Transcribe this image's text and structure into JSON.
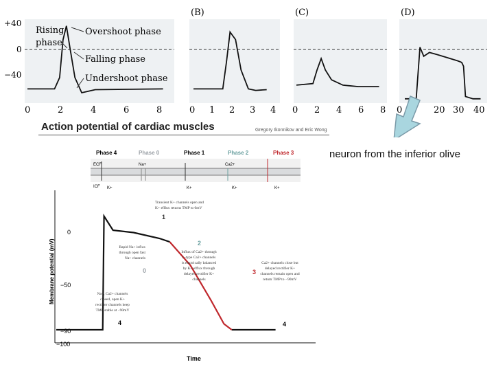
{
  "top_panels": [
    {
      "label": "",
      "y_ticks": [
        "+40",
        "0",
        "−40"
      ],
      "x_ticks": [
        "0",
        "2",
        "4",
        "6",
        "8"
      ],
      "annotations": [
        "Rising",
        "phase",
        "Overshoot phase",
        "Falling phase",
        "Undershoot phase"
      ]
    },
    {
      "label": "(B)",
      "x_ticks": [
        "0",
        "1",
        "2",
        "3",
        "4"
      ]
    },
    {
      "label": "(C)",
      "x_ticks": [
        "0",
        "2",
        "4",
        "6",
        "8"
      ]
    },
    {
      "label": "(D)",
      "x_ticks": [
        "0",
        "20",
        "30",
        "40"
      ]
    }
  ],
  "cardiac": {
    "title": "Action potential of cardiac muscles",
    "credit": "Gregory Ikonnikov and Eric Wong",
    "phase_headers": [
      {
        "label": "Phase 4",
        "color": "#222222"
      },
      {
        "label": "Phase 0",
        "color": "#9aa0a6"
      },
      {
        "label": "Phase 1",
        "color": "#222222"
      },
      {
        "label": "Phase 2",
        "color": "#6aa0a0"
      },
      {
        "label": "Phase 3",
        "color": "#c0282d"
      }
    ],
    "membrane": {
      "ecf": "ECF",
      "icf": "ICF",
      "na": "Na+",
      "ca": "Ca2+",
      "k": "K+"
    },
    "y_label": "Membrane potential (mV)",
    "x_label": "Time",
    "y_ticks": [
      "0",
      "−50",
      "−90",
      "−100"
    ],
    "phase_numbers": [
      "4",
      "0",
      "1",
      "2",
      "3",
      "4"
    ],
    "notes": {
      "phase1": [
        "Transient K+ channels open and",
        "K+ efflux returns TMP to 0mV"
      ],
      "phase0": [
        "Rapid Na+ influx",
        "through open fast",
        "Na+ channels"
      ],
      "phase2": [
        "Influx of Ca2+ through",
        "L-type Ca2+ channels",
        "is electrically balanced",
        "by K+ efflux through",
        "delayed rectifier K+",
        "channels"
      ],
      "phase3": [
        "Ca2+ channels close but",
        "delayed rectifier K+",
        "channels remain open and",
        "return TMP to −90mV"
      ],
      "phase4": [
        "Na+, Ca2+ channels",
        "closed, open K+",
        "rectifier channels keep",
        "TMP stable at −90mV"
      ]
    }
  },
  "side_label": "neuron from the inferior olive",
  "chart_data": [
    {
      "type": "line",
      "title": "",
      "ylim": [
        -60,
        45
      ],
      "xlim": [
        0,
        8.5
      ],
      "x": [
        0,
        1.6,
        1.9,
        2.1,
        2.3,
        2.5,
        2.8,
        3.2,
        4,
        8
      ],
      "y": [
        -45,
        -45,
        -30,
        20,
        38,
        10,
        -30,
        -50,
        -46,
        -45
      ]
    },
    {
      "type": "line",
      "title": "(B)",
      "ylim": [
        -60,
        45
      ],
      "xlim": [
        0,
        4.5
      ],
      "x": [
        0,
        1.6,
        1.8,
        2.0,
        2.3,
        2.6,
        3.0,
        3.4,
        4
      ],
      "y": [
        -45,
        -45,
        -10,
        30,
        20,
        -20,
        -45,
        -47,
        -46
      ]
    },
    {
      "type": "line",
      "title": "(C)",
      "ylim": [
        -60,
        45
      ],
      "xlim": [
        0,
        8.5
      ],
      "x": [
        0,
        1.6,
        2.0,
        2.4,
        2.8,
        3.4,
        4.5,
        6,
        8
      ],
      "y": [
        -40,
        -38,
        -20,
        -5,
        -20,
        -33,
        -40,
        -42,
        -42
      ]
    },
    {
      "type": "line",
      "title": "(D)",
      "ylim": [
        -60,
        45
      ],
      "xlim": [
        0,
        42
      ],
      "x": [
        0,
        6,
        8,
        10,
        13,
        16,
        20,
        24,
        28,
        30,
        31,
        32,
        36,
        40
      ],
      "y": [
        -58,
        -58,
        10,
        -2,
        3,
        1,
        -2,
        -5,
        -8,
        -10,
        -15,
        -55,
        -58,
        -58
      ]
    },
    {
      "type": "line",
      "title": "Action potential of cardiac muscles",
      "xlabel": "Time",
      "ylabel": "Membrane potential (mV)",
      "ylim": [
        -100,
        15
      ],
      "xlim": [
        0,
        10
      ],
      "x": [
        0,
        1.8,
        1.85,
        2.2,
        3.0,
        4.0,
        4.4,
        5.2,
        6.0,
        6.5,
        6.8,
        8.5
      ],
      "y": [
        -90,
        -90,
        7,
        -5,
        -7,
        -12,
        -15,
        -35,
        -65,
        -85,
        -90,
        -90
      ]
    }
  ]
}
